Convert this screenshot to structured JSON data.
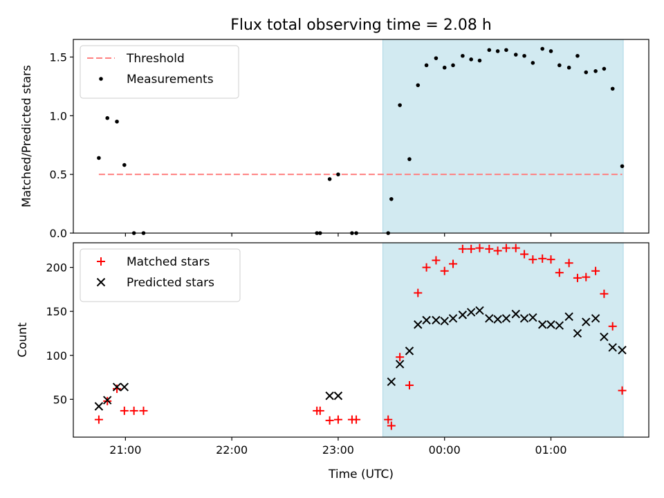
{
  "chart_data": {
    "title": "Flux total observing time = 2.08 h",
    "xlabel": "Time (UTC)",
    "x_ticks": [
      "21:00",
      "22:00",
      "23:00",
      "00:00",
      "01:00"
    ],
    "x_tick_hours": [
      21,
      22,
      23,
      24,
      25
    ],
    "xlim": [
      20.51,
      25.92
    ],
    "observing_window": [
      23.42,
      25.68
    ],
    "window_color": "#add8e6",
    "panels": [
      {
        "type": "scatter",
        "ylabel": "Matched/Predicted stars",
        "ylim": [
          0,
          1.65
        ],
        "y_ticks": [
          0.0,
          0.5,
          1.0,
          1.5
        ],
        "y_tick_labels": [
          "0.0",
          "0.5",
          "1.0",
          "1.5"
        ],
        "legend": {
          "position": "upper left",
          "entries": [
            "Threshold",
            "Measurements"
          ]
        },
        "threshold": {
          "name": "Threshold",
          "value": 0.5,
          "x_range": [
            20.75,
            25.67
          ],
          "color": "#ff7f7f",
          "style": "dashed"
        },
        "series": [
          {
            "name": "Measurements",
            "marker": "dot",
            "color": "#000000",
            "x": [
              20.75,
              20.83,
              20.92,
              20.99,
              21.08,
              21.17,
              22.8,
              22.83,
              22.92,
              23.0,
              23.13,
              23.17,
              23.47,
              23.5,
              23.58,
              23.67,
              23.75,
              23.83,
              23.92,
              24.0,
              24.08,
              24.17,
              24.25,
              24.33,
              24.42,
              24.5,
              24.58,
              24.67,
              24.75,
              24.83,
              24.92,
              25.0,
              25.08,
              25.17,
              25.25,
              25.33,
              25.42,
              25.5,
              25.58,
              25.67
            ],
            "y": [
              0.64,
              0.98,
              0.95,
              0.58,
              0.0,
              0.0,
              0.0,
              0.0,
              0.46,
              0.5,
              0.0,
              0.0,
              0.0,
              0.29,
              1.09,
              0.63,
              1.26,
              1.43,
              1.49,
              1.41,
              1.43,
              1.51,
              1.48,
              1.47,
              1.56,
              1.55,
              1.56,
              1.52,
              1.51,
              1.45,
              1.57,
              1.55,
              1.43,
              1.41,
              1.51,
              1.37,
              1.38,
              1.4,
              1.23,
              0.57
            ]
          }
        ]
      },
      {
        "type": "scatter",
        "ylabel": "Count",
        "ylim": [
          7,
          228
        ],
        "y_ticks": [
          50,
          100,
          150,
          200
        ],
        "y_tick_labels": [
          "50",
          "100",
          "150",
          "200"
        ],
        "legend": {
          "position": "upper left",
          "entries": [
            "Matched stars",
            "Predicted stars"
          ]
        },
        "series": [
          {
            "name": "Matched stars",
            "marker": "plus",
            "color": "#ff0000",
            "x": [
              20.75,
              20.83,
              20.92,
              20.99,
              21.08,
              21.17,
              22.8,
              22.83,
              22.92,
              23.0,
              23.13,
              23.17,
              23.47,
              23.5,
              23.58,
              23.67,
              23.75,
              23.83,
              23.92,
              24.0,
              24.08,
              24.17,
              24.25,
              24.33,
              24.42,
              24.5,
              24.58,
              24.67,
              24.75,
              24.83,
              24.92,
              25.0,
              25.08,
              25.17,
              25.25,
              25.33,
              25.42,
              25.5,
              25.58,
              25.67
            ],
            "y": [
              27,
              48,
              62,
              37,
              37,
              37,
              37,
              37,
              26,
              27,
              27,
              27,
              27,
              20,
              98,
              66,
              171,
              200,
              208,
              196,
              204,
              221,
              221,
              222,
              221,
              219,
              222,
              222,
              215,
              209,
              210,
              209,
              194,
              205,
              188,
              189,
              196,
              170,
              133,
              60
            ]
          },
          {
            "name": "Predicted stars",
            "marker": "x",
            "color": "#000000",
            "x": [
              20.75,
              20.83,
              20.92,
              20.99,
              22.92,
              23.0,
              23.5,
              23.58,
              23.67,
              23.75,
              23.83,
              23.92,
              24.0,
              24.08,
              24.17,
              24.25,
              24.33,
              24.42,
              24.5,
              24.58,
              24.67,
              24.75,
              24.83,
              24.92,
              25.0,
              25.08,
              25.17,
              25.25,
              25.33,
              25.42,
              25.5,
              25.58,
              25.67
            ],
            "y": [
              42,
              49,
              64,
              64,
              54,
              54,
              70,
              90,
              105,
              135,
              140,
              140,
              139,
              142,
              146,
              149,
              151,
              142,
              141,
              142,
              147,
              142,
              143,
              135,
              135,
              134,
              144,
              125,
              138,
              142,
              121,
              109,
              106
            ]
          }
        ]
      }
    ]
  }
}
